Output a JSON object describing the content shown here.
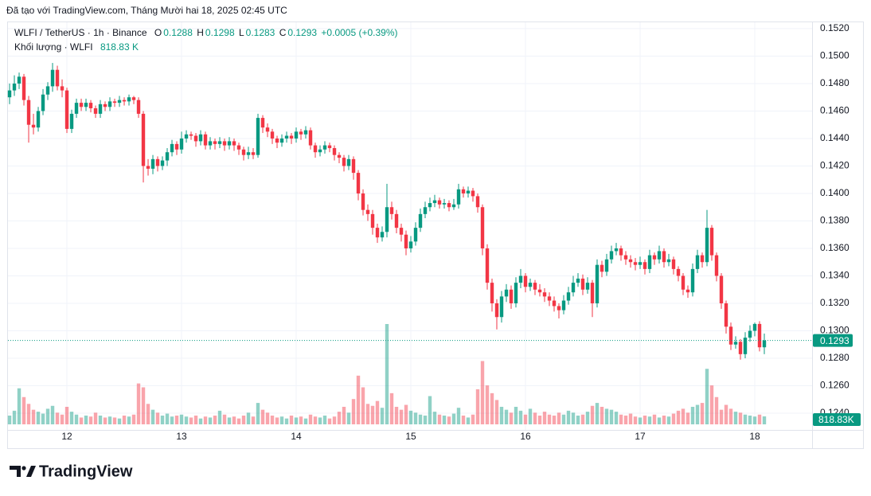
{
  "chart_data": {
    "type": "candlestick",
    "caption": "Đã tạo với TradingView.com, Tháng Mười hai 18, 2025 02:45 UTC",
    "symbol": "WLFI / TetherUS · 1h · Binance",
    "ohlc_labels": [
      "O",
      "H",
      "L",
      "C"
    ],
    "change": "+0.0005 (+0.39%)",
    "volume_title": "Khối lượng · WLFI",
    "brand": "TradingView",
    "up_color": "#089981",
    "down_color": "#f23645",
    "grid": true,
    "x_start": 11.5,
    "x_step": 0.0416667,
    "xlim": [
      11.479,
      18.5
    ],
    "xticks": [
      12,
      13,
      14,
      15,
      16,
      17,
      18
    ],
    "ylim": [
      0.12319,
      0.15246
    ],
    "yticks": [
      {
        "value": 0.152,
        "label": "0.1520"
      },
      {
        "value": 0.15,
        "label": "0.1500"
      },
      {
        "value": 0.148,
        "label": "0.1480"
      },
      {
        "value": 0.146,
        "label": "0.1460"
      },
      {
        "value": 0.144,
        "label": "0.1440"
      },
      {
        "value": 0.142,
        "label": "0.1420"
      },
      {
        "value": 0.14,
        "label": "0.1400"
      },
      {
        "value": 0.138,
        "label": "0.1380"
      },
      {
        "value": 0.136,
        "label": "0.1360"
      },
      {
        "value": 0.134,
        "label": "0.1340"
      },
      {
        "value": 0.132,
        "label": "0.1320"
      },
      {
        "value": 0.13,
        "label": "0.1300"
      },
      {
        "value": 0.128,
        "label": "0.1280"
      },
      {
        "value": 0.126,
        "label": "0.1260"
      },
      {
        "value": 0.124,
        "label": "0.1240"
      }
    ],
    "candles": [
      [
        0.147,
        0.148,
        0.1465,
        0.1475
      ],
      [
        0.1475,
        0.1486,
        0.1471,
        0.148
      ],
      [
        0.148,
        0.1488,
        0.1476,
        0.1485
      ],
      [
        0.1485,
        0.1487,
        0.1464,
        0.1468
      ],
      [
        0.1468,
        0.1471,
        0.1437,
        0.145
      ],
      [
        0.145,
        0.1458,
        0.1443,
        0.1448
      ],
      [
        0.1448,
        0.1463,
        0.1445,
        0.146
      ],
      [
        0.146,
        0.1476,
        0.1457,
        0.1472
      ],
      [
        0.1472,
        0.1481,
        0.1468,
        0.1478
      ],
      [
        0.1478,
        0.1495,
        0.1474,
        0.149
      ],
      [
        0.149,
        0.1493,
        0.1475,
        0.1478
      ],
      [
        0.1478,
        0.1483,
        0.147,
        0.1475
      ],
      [
        0.1475,
        0.1477,
        0.1444,
        0.1447
      ],
      [
        0.1447,
        0.1461,
        0.1444,
        0.1458
      ],
      [
        0.1458,
        0.1469,
        0.1455,
        0.1466
      ],
      [
        0.1466,
        0.1469,
        0.146,
        0.1463
      ],
      [
        0.1463,
        0.1469,
        0.146,
        0.1466
      ],
      [
        0.1466,
        0.1468,
        0.1459,
        0.1462
      ],
      [
        0.1462,
        0.1464,
        0.1455,
        0.1458
      ],
      [
        0.1458,
        0.1468,
        0.1455,
        0.1465
      ],
      [
        0.1465,
        0.1467,
        0.146,
        0.1463
      ],
      [
        0.1463,
        0.147,
        0.146,
        0.1467
      ],
      [
        0.1467,
        0.1469,
        0.1463,
        0.1466
      ],
      [
        0.1466,
        0.1471,
        0.1463,
        0.1468
      ],
      [
        0.1468,
        0.147,
        0.1464,
        0.1467
      ],
      [
        0.1467,
        0.1472,
        0.1464,
        0.147
      ],
      [
        0.147,
        0.1471,
        0.1465,
        0.1468
      ],
      [
        0.1468,
        0.147,
        0.1455,
        0.1458
      ],
      [
        0.1458,
        0.146,
        0.1408,
        0.142
      ],
      [
        0.142,
        0.1425,
        0.1413,
        0.1418
      ],
      [
        0.1418,
        0.1428,
        0.1414,
        0.1425
      ],
      [
        0.1425,
        0.1427,
        0.1416,
        0.142
      ],
      [
        0.142,
        0.1427,
        0.1417,
        0.1424
      ],
      [
        0.1424,
        0.1433,
        0.142,
        0.143
      ],
      [
        0.143,
        0.1439,
        0.1427,
        0.1436
      ],
      [
        0.1436,
        0.1438,
        0.1428,
        0.1432
      ],
      [
        0.1432,
        0.1445,
        0.1429,
        0.144
      ],
      [
        0.144,
        0.1446,
        0.1437,
        0.1443
      ],
      [
        0.1443,
        0.1445,
        0.1439,
        0.1442
      ],
      [
        0.1442,
        0.1444,
        0.1434,
        0.1438
      ],
      [
        0.1438,
        0.1446,
        0.1435,
        0.1443
      ],
      [
        0.1443,
        0.1445,
        0.1432,
        0.1435
      ],
      [
        0.1435,
        0.1441,
        0.1432,
        0.1438
      ],
      [
        0.1438,
        0.144,
        0.1432,
        0.1436
      ],
      [
        0.1436,
        0.1441,
        0.1433,
        0.1438
      ],
      [
        0.1438,
        0.144,
        0.1431,
        0.1435
      ],
      [
        0.1435,
        0.1441,
        0.1432,
        0.1438
      ],
      [
        0.1438,
        0.144,
        0.1431,
        0.1435
      ],
      [
        0.1435,
        0.1437,
        0.1428,
        0.1432
      ],
      [
        0.1432,
        0.1434,
        0.1424,
        0.1428
      ],
      [
        0.1428,
        0.1434,
        0.1425,
        0.143
      ],
      [
        0.143,
        0.1433,
        0.1425,
        0.1428
      ],
      [
        0.1428,
        0.1458,
        0.1426,
        0.1455
      ],
      [
        0.1455,
        0.1457,
        0.1444,
        0.1448
      ],
      [
        0.1448,
        0.1451,
        0.1441,
        0.1445
      ],
      [
        0.1445,
        0.1447,
        0.1436,
        0.144
      ],
      [
        0.144,
        0.1442,
        0.1433,
        0.1437
      ],
      [
        0.1437,
        0.1443,
        0.1434,
        0.144
      ],
      [
        0.144,
        0.1445,
        0.1437,
        0.1442
      ],
      [
        0.1442,
        0.1444,
        0.1436,
        0.144
      ],
      [
        0.144,
        0.1448,
        0.1437,
        0.1445
      ],
      [
        0.1445,
        0.1447,
        0.1439,
        0.1443
      ],
      [
        0.1443,
        0.1449,
        0.144,
        0.1446
      ],
      [
        0.1446,
        0.1448,
        0.1432,
        0.1435
      ],
      [
        0.1435,
        0.1437,
        0.1426,
        0.143
      ],
      [
        0.143,
        0.1435,
        0.1427,
        0.1432
      ],
      [
        0.1432,
        0.1438,
        0.1429,
        0.1435
      ],
      [
        0.1435,
        0.1437,
        0.143,
        0.1433
      ],
      [
        0.1433,
        0.1435,
        0.1424,
        0.1428
      ],
      [
        0.1428,
        0.143,
        0.1422,
        0.1426
      ],
      [
        0.1426,
        0.1428,
        0.1416,
        0.142
      ],
      [
        0.142,
        0.1428,
        0.1417,
        0.1425
      ],
      [
        0.1425,
        0.1427,
        0.141,
        0.1415
      ],
      [
        0.1415,
        0.1417,
        0.1395,
        0.14
      ],
      [
        0.14,
        0.1403,
        0.1384,
        0.1388
      ],
      [
        0.1388,
        0.1392,
        0.138,
        0.1385
      ],
      [
        0.1385,
        0.1388,
        0.137,
        0.1375
      ],
      [
        0.1375,
        0.1378,
        0.1364,
        0.1368
      ],
      [
        0.1368,
        0.1376,
        0.1365,
        0.1372
      ],
      [
        0.1372,
        0.1407,
        0.1368,
        0.139
      ],
      [
        0.139,
        0.1394,
        0.1381,
        0.1385
      ],
      [
        0.1385,
        0.1388,
        0.1371,
        0.1375
      ],
      [
        0.1375,
        0.1378,
        0.1365,
        0.137
      ],
      [
        0.137,
        0.1373,
        0.1355,
        0.136
      ],
      [
        0.136,
        0.1369,
        0.1357,
        0.1365
      ],
      [
        0.1365,
        0.1379,
        0.1362,
        0.1375
      ],
      [
        0.1375,
        0.1389,
        0.1372,
        0.1385
      ],
      [
        0.1385,
        0.1394,
        0.1382,
        0.139
      ],
      [
        0.139,
        0.1397,
        0.1387,
        0.1393
      ],
      [
        0.1393,
        0.1399,
        0.139,
        0.1395
      ],
      [
        0.1395,
        0.1397,
        0.1389,
        0.1392
      ],
      [
        0.1392,
        0.1396,
        0.1389,
        0.1393
      ],
      [
        0.1393,
        0.1395,
        0.1387,
        0.139
      ],
      [
        0.139,
        0.1396,
        0.1388,
        0.1392
      ],
      [
        0.1392,
        0.1407,
        0.1389,
        0.1403
      ],
      [
        0.1403,
        0.1405,
        0.1397,
        0.14
      ],
      [
        0.14,
        0.1405,
        0.1397,
        0.1402
      ],
      [
        0.1402,
        0.1404,
        0.1394,
        0.1398
      ],
      [
        0.1398,
        0.14,
        0.1386,
        0.139
      ],
      [
        0.139,
        0.1392,
        0.1355,
        0.136
      ],
      [
        0.136,
        0.1363,
        0.133,
        0.1335
      ],
      [
        0.1335,
        0.1338,
        0.1314,
        0.132
      ],
      [
        0.132,
        0.1323,
        0.1301,
        0.131
      ],
      [
        0.131,
        0.1329,
        0.1306,
        0.1325
      ],
      [
        0.1325,
        0.1334,
        0.1321,
        0.133
      ],
      [
        0.133,
        0.1333,
        0.1316,
        0.132
      ],
      [
        0.132,
        0.1339,
        0.1317,
        0.1335
      ],
      [
        0.1335,
        0.1345,
        0.1331,
        0.134
      ],
      [
        0.134,
        0.1342,
        0.1328,
        0.1332
      ],
      [
        0.1332,
        0.1338,
        0.1329,
        0.1335
      ],
      [
        0.1335,
        0.1337,
        0.1326,
        0.133
      ],
      [
        0.133,
        0.1334,
        0.1325,
        0.1328
      ],
      [
        0.1328,
        0.1331,
        0.1321,
        0.1325
      ],
      [
        0.1325,
        0.1328,
        0.1318,
        0.1322
      ],
      [
        0.1322,
        0.1325,
        0.1314,
        0.1318
      ],
      [
        0.1318,
        0.132,
        0.1309,
        0.1315
      ],
      [
        0.1315,
        0.1326,
        0.1312,
        0.1322
      ],
      [
        0.1322,
        0.1332,
        0.1319,
        0.1328
      ],
      [
        0.1328,
        0.134,
        0.1325,
        0.1335
      ],
      [
        0.1335,
        0.1342,
        0.1332,
        0.1338
      ],
      [
        0.1338,
        0.1341,
        0.1326,
        0.133
      ],
      [
        0.133,
        0.1339,
        0.1327,
        0.1335
      ],
      [
        0.1335,
        0.1337,
        0.131,
        0.132
      ],
      [
        0.132,
        0.1352,
        0.1317,
        0.1348
      ],
      [
        0.1348,
        0.1351,
        0.1339,
        0.1343
      ],
      [
        0.1343,
        0.1356,
        0.134,
        0.1352
      ],
      [
        0.1352,
        0.1362,
        0.1349,
        0.1358
      ],
      [
        0.1358,
        0.1364,
        0.1355,
        0.136
      ],
      [
        0.136,
        0.1362,
        0.1351,
        0.1355
      ],
      [
        0.1355,
        0.1358,
        0.1348,
        0.1352
      ],
      [
        0.1352,
        0.1355,
        0.1346,
        0.135
      ],
      [
        0.135,
        0.1353,
        0.1344,
        0.1348
      ],
      [
        0.1348,
        0.1354,
        0.1345,
        0.135
      ],
      [
        0.135,
        0.1352,
        0.1341,
        0.1345
      ],
      [
        0.1345,
        0.1359,
        0.1342,
        0.1355
      ],
      [
        0.1355,
        0.1357,
        0.1348,
        0.1352
      ],
      [
        0.1352,
        0.1362,
        0.1349,
        0.1358
      ],
      [
        0.1358,
        0.136,
        0.1346,
        0.135
      ],
      [
        0.135,
        0.1356,
        0.1347,
        0.1352
      ],
      [
        0.1352,
        0.1354,
        0.1341,
        0.1345
      ],
      [
        0.1345,
        0.1347,
        0.1336,
        0.134
      ],
      [
        0.134,
        0.1342,
        0.1326,
        0.133
      ],
      [
        0.133,
        0.1333,
        0.1324,
        0.1328
      ],
      [
        0.1328,
        0.1349,
        0.1325,
        0.1345
      ],
      [
        0.1345,
        0.1359,
        0.1342,
        0.1355
      ],
      [
        0.1355,
        0.1357,
        0.1346,
        0.135
      ],
      [
        0.135,
        0.1388,
        0.1347,
        0.1375
      ],
      [
        0.1375,
        0.1377,
        0.1351,
        0.1355
      ],
      [
        0.1355,
        0.1357,
        0.1336,
        0.134
      ],
      [
        0.134,
        0.1342,
        0.1316,
        0.132
      ],
      [
        0.132,
        0.1322,
        0.1298,
        0.1303
      ],
      [
        0.1303,
        0.1306,
        0.1286,
        0.129
      ],
      [
        0.129,
        0.1296,
        0.1287,
        0.1292
      ],
      [
        0.1292,
        0.1294,
        0.1279,
        0.1283
      ],
      [
        0.1283,
        0.1299,
        0.128,
        0.1295
      ],
      [
        0.1295,
        0.1304,
        0.1292,
        0.13
      ],
      [
        0.13,
        0.1306,
        0.1296,
        0.1305
      ],
      [
        0.1305,
        0.1307,
        0.1285,
        0.1288
      ],
      [
        0.1288,
        0.1298,
        0.1283,
        0.1293
      ]
    ],
    "volume": {
      "values": [
        900000,
        1400000,
        3700000,
        2800000,
        2100000,
        1500000,
        1300000,
        1100000,
        1600000,
        1900000,
        1200000,
        1000000,
        1800000,
        1300000,
        1000000,
        700000,
        900000,
        800000,
        1200000,
        900000,
        700000,
        800000,
        700000,
        600000,
        900000,
        800000,
        1000000,
        4200000,
        3800000,
        2100000,
        1500000,
        1200000,
        900000,
        1100000,
        800000,
        900000,
        1000000,
        800000,
        700000,
        900000,
        600000,
        800000,
        700000,
        900000,
        1400000,
        1000000,
        700000,
        800000,
        600000,
        900000,
        1200000,
        800000,
        2200000,
        1500000,
        1200000,
        900000,
        700000,
        800000,
        600000,
        900000,
        700000,
        800000,
        600000,
        1000000,
        800000,
        700000,
        900000,
        600000,
        800000,
        1300000,
        1800000,
        1200000,
        2600000,
        5000000,
        3800000,
        2100000,
        1900000,
        2400000,
        1700000,
        10300000,
        3200000,
        1800000,
        1500000,
        2000000,
        1400000,
        1200000,
        1000000,
        900000,
        2900000,
        1300000,
        1000000,
        900000,
        800000,
        1100000,
        1700000,
        900000,
        700000,
        1000000,
        3600000,
        6500000,
        4000000,
        3200000,
        2500000,
        1800000,
        1500000,
        1200000,
        1800000,
        1400000,
        1000000,
        1600000,
        1200000,
        900000,
        1300000,
        1000000,
        900000,
        1200000,
        1000000,
        1400000,
        1200000,
        900000,
        1000000,
        1300000,
        1900000,
        2200000,
        1800000,
        1600000,
        1500000,
        1300000,
        1000000,
        900000,
        1100000,
        800000,
        700000,
        900000,
        800000,
        1000000,
        700000,
        900000,
        800000,
        1100000,
        1400000,
        1600000,
        1200000,
        1800000,
        2000000,
        2200000,
        5700000,
        4000000,
        2800000,
        1500000,
        2000000,
        1600000,
        1300000,
        1200000,
        1000000,
        900000,
        800000,
        1000000,
        818830
      ],
      "legend_label": "818.83 K",
      "axis_label": "818.83K"
    }
  }
}
